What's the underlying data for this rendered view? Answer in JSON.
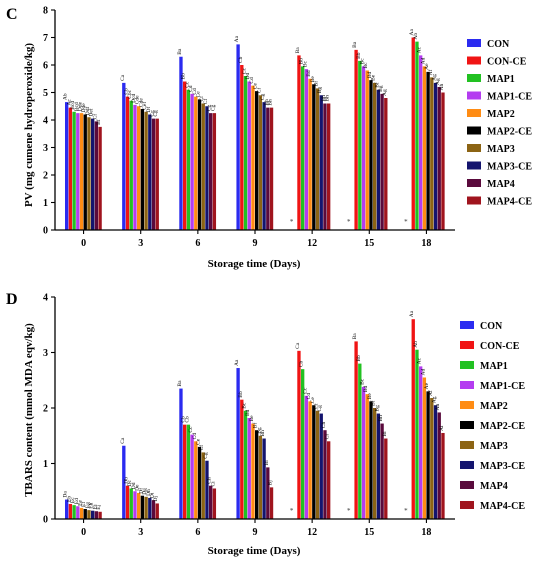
{
  "series_colors": {
    "CON": "#2b2bf0",
    "CON-CE": "#f01414",
    "MAP1": "#22c122",
    "MAP1-CE": "#b43cf0",
    "MAP2": "#ff8c14",
    "MAP2-CE": "#000000",
    "MAP3": "#8c6414",
    "MAP3-CE": "#14146e",
    "MAP4": "#5a0a3c",
    "MAP4-CE": "#a0141e"
  },
  "not_determined_mark": "*",
  "chart_data": [
    {
      "type": "bar",
      "panel": "C",
      "xlabel": "Storage time (Days)",
      "ylabel": "PV (mg cumene hydroperoxide/kg)",
      "ylim": [
        0,
        8
      ],
      "yticks": [
        0,
        1,
        2,
        3,
        4,
        5,
        6,
        7,
        8
      ],
      "categories": [
        "0",
        "3",
        "6",
        "9",
        "12",
        "15",
        "18"
      ],
      "legend_position": "right",
      "series": [
        {
          "name": "CON",
          "values": [
            4.65,
            5.35,
            6.3,
            6.75,
            null,
            null,
            null
          ],
          "labels": [
            "Ab",
            "Ca",
            "Ba",
            "Aa",
            "",
            "",
            ""
          ]
        },
        {
          "name": "CON-CE",
          "values": [
            4.45,
            4.85,
            5.4,
            6.0,
            6.35,
            6.55,
            7.0
          ],
          "labels": [
            "Ac",
            "Cb",
            "Bb",
            "Cb",
            "Ba",
            "Ba",
            "Aa"
          ]
        },
        {
          "name": "MAP1",
          "values": [
            4.3,
            4.7,
            5.1,
            5.6,
            5.95,
            6.15,
            6.85
          ],
          "labels": [
            "Bcd",
            "Cbc",
            "Cc",
            "Cc",
            "Bb",
            "Bb",
            "Ab"
          ]
        },
        {
          "name": "MAP1-CE",
          "values": [
            4.25,
            4.55,
            4.95,
            5.4,
            5.85,
            5.95,
            6.35
          ],
          "labels": [
            "Bcd",
            "Dcd",
            "Cd",
            "Dd",
            "Bc",
            "Bc",
            "Ac"
          ]
        },
        {
          "name": "MAP2",
          "values": [
            4.25,
            4.5,
            4.85,
            5.25,
            5.5,
            5.8,
            5.95
          ],
          "labels": [
            "Dde",
            "Cde",
            "Cd",
            "Cd",
            "Bd",
            "Bc",
            "Ad"
          ]
        },
        {
          "name": "MAP2-CE",
          "values": [
            4.2,
            4.4,
            4.75,
            5.05,
            5.3,
            5.45,
            5.75
          ],
          "labels": [
            "Dde",
            "Cde",
            "Ce",
            "Ce",
            "Be",
            "Bd",
            "Ae"
          ]
        },
        {
          "name": "MAP3",
          "values": [
            4.1,
            4.3,
            4.6,
            4.9,
            5.15,
            5.35,
            5.55
          ],
          "labels": [
            "Ddf",
            "Cef",
            "Cf",
            "Cf",
            "Bf",
            "Be",
            "Af"
          ]
        },
        {
          "name": "MAP3-CE",
          "values": [
            4.05,
            4.2,
            4.5,
            4.65,
            4.9,
            5.1,
            5.35
          ],
          "labels": [
            "Def",
            "Df",
            "Cf",
            "Cg",
            "Bg",
            "Bf",
            "Ag"
          ]
        },
        {
          "name": "MAP4",
          "values": [
            3.95,
            4.05,
            4.25,
            4.45,
            4.6,
            4.95,
            5.2
          ],
          "labels": [
            "Cf",
            "Cg",
            "Cg",
            "Bh",
            "Bh",
            "Bg",
            "Ag"
          ]
        },
        {
          "name": "MAP4-CE",
          "values": [
            3.75,
            4.05,
            4.25,
            4.45,
            4.6,
            4.8,
            5.0
          ],
          "labels": [
            "Bf",
            "Cg",
            "Cg",
            "Bh",
            "Bh",
            "Ag",
            "Ah"
          ]
        }
      ]
    },
    {
      "type": "bar",
      "panel": "D",
      "xlabel": "Storage time (Days)",
      "ylabel": "TBARS content (mmol MDA eqv/kg)",
      "ylim": [
        0,
        4
      ],
      "yticks": [
        0,
        1,
        2,
        3,
        4
      ],
      "categories": [
        "0",
        "3",
        "6",
        "9",
        "12",
        "15",
        "18"
      ],
      "legend_position": "right",
      "series": [
        {
          "name": "CON",
          "values": [
            0.35,
            1.32,
            2.35,
            2.72,
            null,
            null,
            null
          ],
          "labels": [
            "Da",
            "Ca",
            "Ba",
            "Aa",
            "",
            "",
            ""
          ]
        },
        {
          "name": "CON-CE",
          "values": [
            0.27,
            0.6,
            1.7,
            2.15,
            3.03,
            3.2,
            3.6
          ],
          "labels": [
            "Eb",
            "Db",
            "Cb",
            "Bb",
            "Ca",
            "Ba",
            "Aa"
          ]
        },
        {
          "name": "MAP1",
          "values": [
            0.25,
            0.55,
            1.7,
            1.95,
            2.7,
            2.8,
            3.05
          ],
          "labels": [
            "Ec",
            "Dc",
            "Cb",
            "Bc",
            "Cb",
            "Bb",
            "Ab"
          ]
        },
        {
          "name": "MAP1-CE",
          "values": [
            0.23,
            0.5,
            1.52,
            1.82,
            2.22,
            2.38,
            2.75
          ],
          "labels": [
            "Ed",
            "Dd",
            "Cc",
            "Bd",
            "Cc",
            "Bc",
            "Ac"
          ]
        },
        {
          "name": "MAP2",
          "values": [
            0.2,
            0.47,
            1.4,
            1.72,
            2.12,
            2.25,
            2.55
          ],
          "labels": [
            "Ee",
            "De",
            "Cd",
            "Be",
            "Cd",
            "Bd",
            "Ad"
          ]
        },
        {
          "name": "MAP2-CE",
          "values": [
            0.18,
            0.42,
            1.3,
            1.6,
            2.05,
            2.12,
            2.3
          ],
          "labels": [
            "Ef",
            "Df",
            "Ce",
            "Bf",
            "Ce",
            "Be",
            "Ae"
          ]
        },
        {
          "name": "MAP3",
          "values": [
            0.16,
            0.4,
            1.2,
            1.5,
            1.95,
            2.0,
            2.18
          ],
          "labels": [
            "Eg",
            "Dg",
            "Cf",
            "Bg",
            "Cf",
            "Bf",
            "Af"
          ]
        },
        {
          "name": "MAP3-CE",
          "values": [
            0.15,
            0.38,
            1.05,
            1.45,
            1.9,
            1.9,
            2.05
          ],
          "labels": [
            "Eh",
            "Dh",
            "Cg",
            "Bh",
            "Cg",
            "Bg",
            "Ag"
          ]
        },
        {
          "name": "MAP4",
          "values": [
            0.14,
            0.34,
            0.6,
            0.93,
            1.6,
            1.72,
            1.92
          ],
          "labels": [
            "Ei",
            "Di",
            "Ch",
            "Bi",
            "Ch",
            "Bh",
            "Ah"
          ]
        },
        {
          "name": "MAP4-CE",
          "values": [
            0.13,
            0.28,
            0.55,
            0.57,
            1.4,
            1.45,
            1.55
          ],
          "labels": [
            "Ej",
            "Dj",
            "Ci",
            "Bj",
            "Ci",
            "Bi",
            "Ai"
          ]
        }
      ]
    }
  ]
}
